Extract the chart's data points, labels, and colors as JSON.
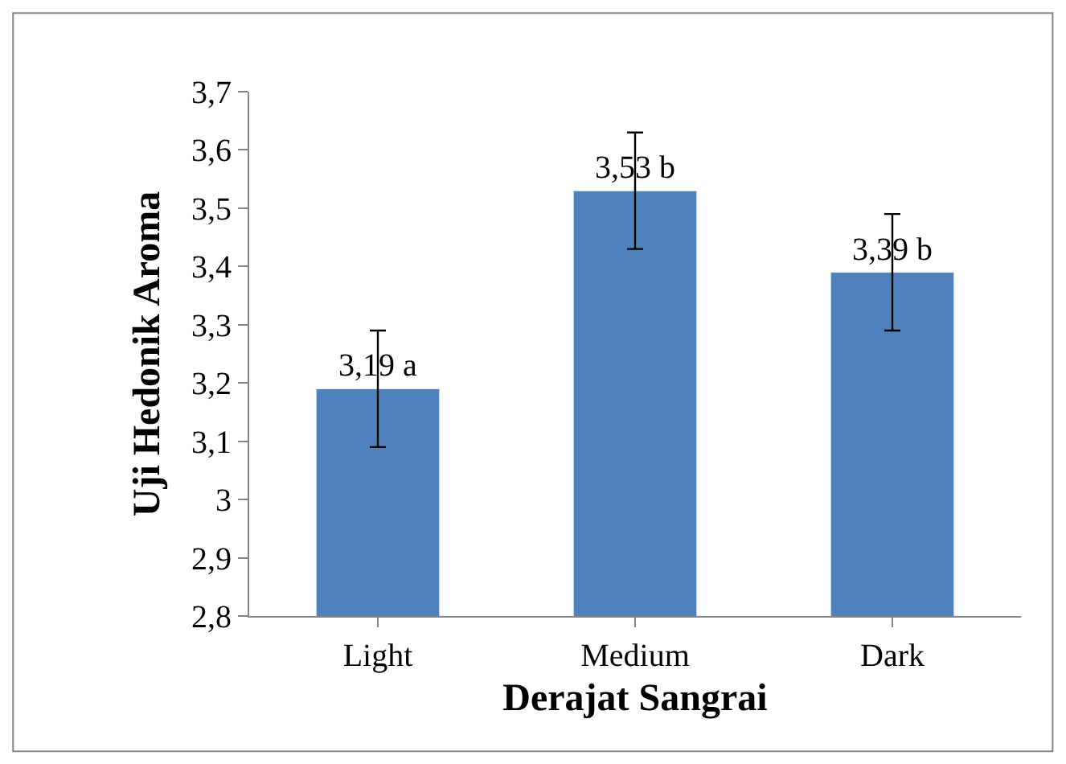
{
  "chart_data": {
    "type": "bar",
    "xlabel": "Derajat Sangrai",
    "ylabel": "Uji Hedonik Aroma",
    "categories": [
      "Light",
      "Medium",
      "Dark"
    ],
    "values": [
      3.19,
      3.53,
      3.39
    ],
    "errors": [
      0.1,
      0.1,
      0.1
    ],
    "value_labels": [
      "3,19 a",
      "3,53 b",
      "3,39 b"
    ],
    "color": "#4f81bd",
    "ylim": [
      2.8,
      3.7
    ],
    "yticks": [
      {
        "value": 2.8,
        "label": "2,8"
      },
      {
        "value": 2.9,
        "label": "2,9"
      },
      3,
      {
        "value": 3.1,
        "label": "3,1"
      },
      {
        "value": 3.2,
        "label": "3,2"
      },
      {
        "value": 3.3,
        "label": "3,3"
      },
      {
        "value": 3.4,
        "label": "3,4"
      },
      {
        "value": 3.5,
        "label": "3,5"
      },
      {
        "value": 3.6,
        "label": "3,6"
      },
      {
        "value": 3.7,
        "label": "3,7"
      }
    ],
    "legend": false
  }
}
